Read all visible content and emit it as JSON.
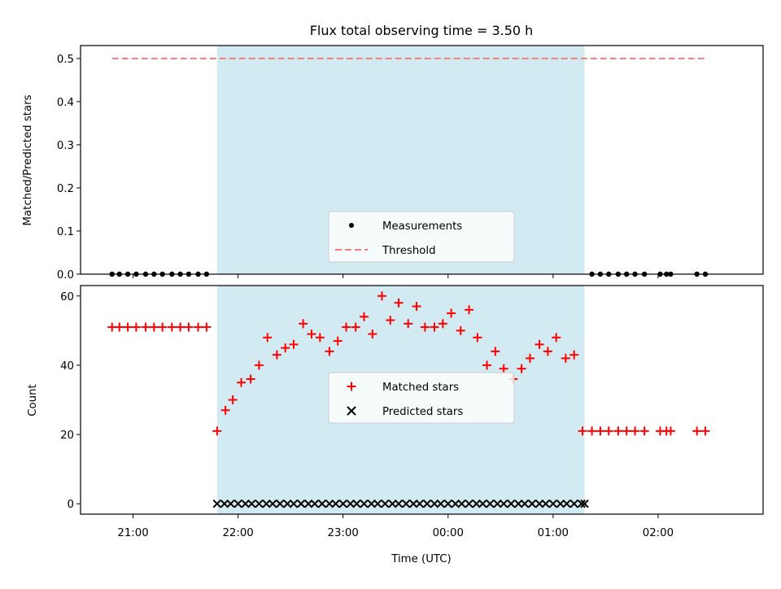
{
  "chart_data": {
    "type": "scatter",
    "title": "Flux total observing time = 3.50 h",
    "xlabel": "Time (UTC)",
    "x_ticks": [
      "21:00",
      "22:00",
      "23:00",
      "00:00",
      "01:00",
      "02:00"
    ],
    "x_tick_hours": [
      21,
      22,
      23,
      24,
      25,
      26
    ],
    "xlim_hours": [
      20.5,
      27.0
    ],
    "shaded_interval_hours": [
      21.8,
      25.3
    ],
    "shade_color": "#add8e6",
    "panels": [
      {
        "ylabel": "Matched/Predicted stars",
        "ylim": [
          0,
          0.53
        ],
        "y_ticks": [
          0.0,
          0.1,
          0.2,
          0.3,
          0.4,
          0.5
        ],
        "y_tick_labels": [
          "0.0",
          "0.1",
          "0.2",
          "0.3",
          "0.4",
          "0.5"
        ],
        "legend": [
          "Measurements",
          "Threshold"
        ],
        "series": [
          {
            "name": "Measurements",
            "marker": "dot",
            "color": "#000000",
            "x": [
              20.8,
              20.87,
              20.95,
              21.03,
              21.12,
              21.2,
              21.28,
              21.37,
              21.45,
              21.53,
              21.62,
              21.7,
              25.37,
              25.45,
              25.53,
              25.62,
              25.7,
              25.78,
              25.87,
              26.02,
              26.08,
              26.12,
              26.37,
              26.45
            ],
            "values": [
              0,
              0,
              0,
              0,
              0,
              0,
              0,
              0,
              0,
              0,
              0,
              0,
              0,
              0,
              0,
              0,
              0,
              0,
              0,
              0,
              0,
              0,
              0,
              0
            ]
          },
          {
            "name": "Threshold",
            "marker": "dashed-line",
            "color": "#f08080",
            "x": [
              20.8,
              26.45
            ],
            "values": [
              0.5,
              0.5
            ]
          }
        ]
      },
      {
        "ylabel": "Count",
        "ylim": [
          -3,
          63
        ],
        "y_ticks": [
          0,
          20,
          40,
          60
        ],
        "y_tick_labels": [
          "0",
          "20",
          "40",
          "60"
        ],
        "legend": [
          "Matched stars",
          "Predicted stars"
        ],
        "series": [
          {
            "name": "Matched stars",
            "marker": "plus",
            "color": "#ff0000",
            "x": [
              20.8,
              20.87,
              20.95,
              21.03,
              21.12,
              21.2,
              21.28,
              21.37,
              21.45,
              21.53,
              21.62,
              21.7,
              21.8,
              21.88,
              21.95,
              22.03,
              22.12,
              22.2,
              22.28,
              22.37,
              22.45,
              22.53,
              22.62,
              22.7,
              22.78,
              22.87,
              22.95,
              23.03,
              23.12,
              23.2,
              23.28,
              23.37,
              23.45,
              23.53,
              23.62,
              23.7,
              23.78,
              23.87,
              23.95,
              24.03,
              24.12,
              24.2,
              24.28,
              24.37,
              24.45,
              24.53,
              24.62,
              24.7,
              24.78,
              24.87,
              24.95,
              25.03,
              25.12,
              25.2,
              25.28,
              25.37,
              25.45,
              25.53,
              25.62,
              25.7,
              25.78,
              25.87,
              26.02,
              26.08,
              26.12,
              26.37,
              26.45
            ],
            "values": [
              51,
              51,
              51,
              51,
              51,
              51,
              51,
              51,
              51,
              51,
              51,
              51,
              21,
              27,
              30,
              35,
              36,
              40,
              48,
              43,
              45,
              46,
              52,
              49,
              48,
              44,
              47,
              51,
              51,
              54,
              49,
              60,
              53,
              58,
              52,
              57,
              51,
              51,
              52,
              55,
              50,
              56,
              48,
              40,
              44,
              39,
              36,
              39,
              42,
              46,
              44,
              48,
              42,
              43,
              21,
              21,
              21,
              21,
              21,
              21,
              21,
              21,
              21,
              21,
              21,
              21,
              21
            ]
          },
          {
            "name": "Predicted stars",
            "marker": "x",
            "color": "#000000",
            "x": [
              21.8,
              21.87,
              21.93,
              22.0,
              22.07,
              22.13,
              22.2,
              22.27,
              22.33,
              22.4,
              22.47,
              22.53,
              22.6,
              22.67,
              22.73,
              22.8,
              22.87,
              22.93,
              23.0,
              23.07,
              23.13,
              23.2,
              23.27,
              23.33,
              23.4,
              23.47,
              23.53,
              23.6,
              23.67,
              23.73,
              23.8,
              23.87,
              23.93,
              24.0,
              24.07,
              24.13,
              24.2,
              24.27,
              24.33,
              24.4,
              24.47,
              24.53,
              24.6,
              24.67,
              24.73,
              24.8,
              24.87,
              24.93,
              25.0,
              25.07,
              25.13,
              25.2,
              25.27,
              25.3
            ],
            "values": [
              0,
              0,
              0,
              0,
              0,
              0,
              0,
              0,
              0,
              0,
              0,
              0,
              0,
              0,
              0,
              0,
              0,
              0,
              0,
              0,
              0,
              0,
              0,
              0,
              0,
              0,
              0,
              0,
              0,
              0,
              0,
              0,
              0,
              0,
              0,
              0,
              0,
              0,
              0,
              0,
              0,
              0,
              0,
              0,
              0,
              0,
              0,
              0,
              0,
              0,
              0,
              0,
              0,
              0
            ]
          }
        ]
      }
    ]
  }
}
